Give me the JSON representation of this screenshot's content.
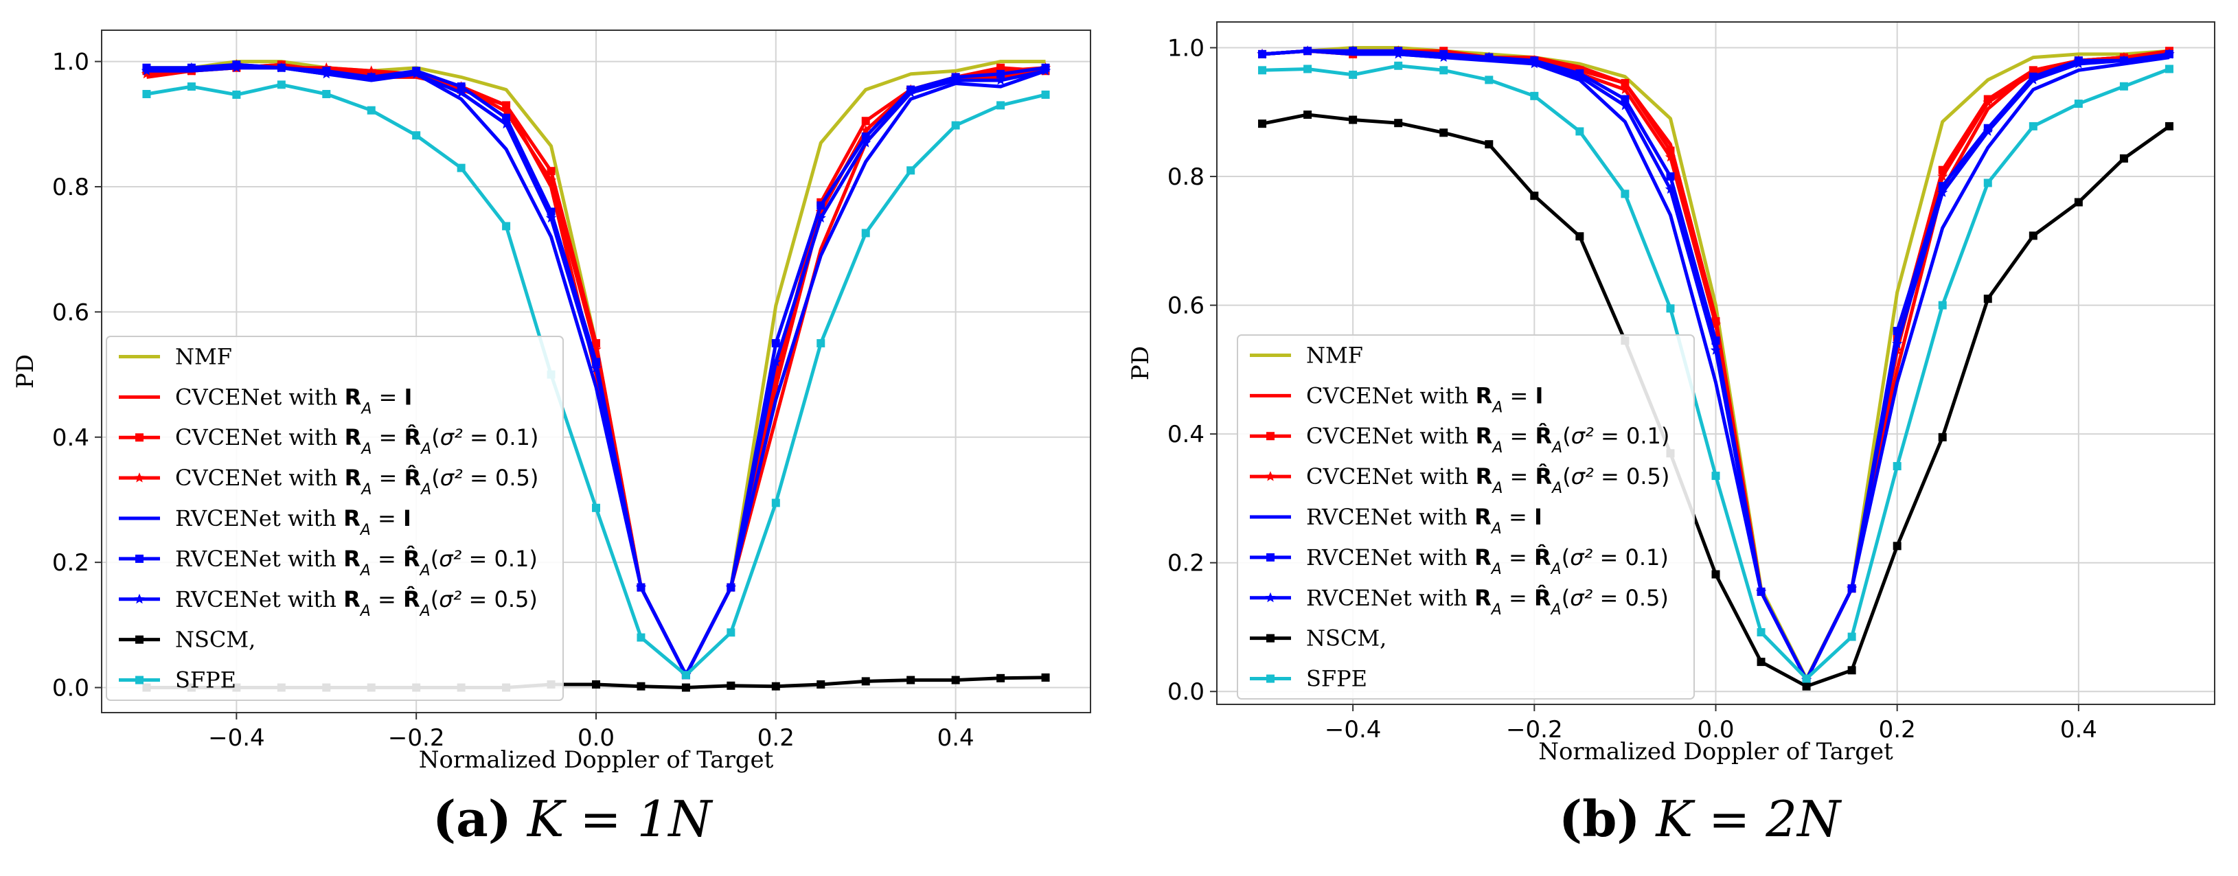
{
  "captions": [
    {
      "letter": "(a)",
      "math": "K = 1N"
    },
    {
      "letter": "(b)",
      "math": "K = 2N"
    }
  ],
  "chart_data": [
    {
      "type": "line",
      "xlabel": "Normalized Doppler of Target",
      "ylabel": "PD",
      "xlim": [
        -0.55,
        0.55
      ],
      "ylim": [
        -0.04,
        1.05
      ],
      "xticks": [
        "−0.4",
        "−0.2",
        "0.0",
        "0.2",
        "0.4"
      ],
      "xtick_values": [
        -0.4,
        -0.2,
        0.0,
        0.2,
        0.4
      ],
      "yticks": [
        "0.0",
        "0.2",
        "0.4",
        "0.6",
        "0.8",
        "1.0"
      ],
      "ytick_values": [
        0.0,
        0.2,
        0.4,
        0.6,
        0.8,
        1.0
      ],
      "grid": true,
      "legend_position": "lower-left",
      "x": [
        -0.5,
        -0.45,
        -0.4,
        -0.35,
        -0.3,
        -0.25,
        -0.2,
        -0.15,
        -0.1,
        -0.05,
        0.0,
        0.05,
        0.1,
        0.15,
        0.2,
        0.25,
        0.3,
        0.35,
        0.4,
        0.45,
        0.5
      ],
      "series": [
        {
          "name": "NMF",
          "color": "#bcbd22",
          "marker": "none",
          "values": [
            0.99,
            0.99,
            1.0,
            1.0,
            0.99,
            0.985,
            0.99,
            0.975,
            0.955,
            0.865,
            0.55,
            0.16,
            0.02,
            0.16,
            0.61,
            0.87,
            0.955,
            0.98,
            0.985,
            1.0,
            1.0
          ]
        },
        {
          "name": "CVCENet with R_A = I",
          "color": "#ff0000",
          "marker": "none",
          "values": [
            0.975,
            0.985,
            0.99,
            0.995,
            0.985,
            0.975,
            0.975,
            0.96,
            0.93,
            0.8,
            0.5,
            0.16,
            0.02,
            0.16,
            0.43,
            0.7,
            0.87,
            0.95,
            0.975,
            0.985,
            0.99
          ]
        },
        {
          "name": "CVCENet with R_A = R̂_A(σ² = 0.1)",
          "color": "#ff0000",
          "marker": "square",
          "values": [
            0.985,
            0.985,
            0.99,
            0.995,
            0.985,
            0.98,
            0.98,
            0.955,
            0.93,
            0.825,
            0.55,
            0.16,
            0.02,
            0.16,
            0.5,
            0.775,
            0.905,
            0.955,
            0.975,
            0.99,
            0.985
          ]
        },
        {
          "name": "CVCENet with R_A = R̂_A(σ² = 0.5)",
          "color": "#ff0000",
          "marker": "star",
          "values": [
            0.98,
            0.985,
            0.995,
            0.99,
            0.99,
            0.985,
            0.98,
            0.96,
            0.92,
            0.81,
            0.54,
            0.16,
            0.02,
            0.16,
            0.48,
            0.76,
            0.89,
            0.955,
            0.975,
            0.975,
            0.99
          ]
        },
        {
          "name": "RVCENet with R_A = I",
          "color": "#0000ff",
          "marker": "none",
          "values": [
            0.985,
            0.985,
            0.99,
            0.99,
            0.98,
            0.97,
            0.98,
            0.94,
            0.86,
            0.72,
            0.48,
            0.16,
            0.02,
            0.16,
            0.46,
            0.69,
            0.84,
            0.94,
            0.965,
            0.96,
            0.985
          ]
        },
        {
          "name": "RVCENet with R_A = R̂_A(σ² = 0.1)",
          "color": "#0000ff",
          "marker": "square",
          "values": [
            0.99,
            0.99,
            0.995,
            0.99,
            0.985,
            0.975,
            0.985,
            0.96,
            0.91,
            0.76,
            0.52,
            0.16,
            0.02,
            0.16,
            0.55,
            0.77,
            0.88,
            0.955,
            0.975,
            0.98,
            0.99
          ]
        },
        {
          "name": "RVCENet with R_A = R̂_A(σ² = 0.5)",
          "color": "#0000ff",
          "marker": "star",
          "values": [
            0.985,
            0.99,
            0.99,
            0.99,
            0.98,
            0.975,
            0.98,
            0.95,
            0.9,
            0.75,
            0.51,
            0.16,
            0.02,
            0.16,
            0.52,
            0.75,
            0.87,
            0.95,
            0.97,
            0.97,
            0.985
          ]
        },
        {
          "name": "NSCM,",
          "color": "#000000",
          "marker": "square",
          "values": [
            0.0,
            0.0,
            0.0,
            0.0,
            0.0,
            0.0,
            0.0,
            0.0,
            0.0,
            0.005,
            0.005,
            0.002,
            0.0,
            0.003,
            0.002,
            0.005,
            0.01,
            0.012,
            0.012,
            0.015,
            0.016
          ]
        },
        {
          "name": "SFPE",
          "color": "#17becf",
          "marker": "square",
          "values": [
            0.948,
            0.96,
            0.947,
            0.963,
            0.948,
            0.922,
            0.882,
            0.83,
            0.737,
            0.5,
            0.287,
            0.08,
            0.02,
            0.088,
            0.295,
            0.55,
            0.726,
            0.826,
            0.898,
            0.93,
            0.947
          ]
        }
      ]
    },
    {
      "type": "line",
      "xlabel": "Normalized Doppler of Target",
      "ylabel": "PD",
      "xlim": [
        -0.55,
        0.55
      ],
      "ylim": [
        -0.02,
        1.04
      ],
      "xticks": [
        "−0.4",
        "−0.2",
        "0.0",
        "0.2",
        "0.4"
      ],
      "xtick_values": [
        -0.4,
        -0.2,
        0.0,
        0.2,
        0.4
      ],
      "yticks": [
        "0.0",
        "0.2",
        "0.4",
        "0.6",
        "0.8",
        "1.0"
      ],
      "ytick_values": [
        0.0,
        0.2,
        0.4,
        0.6,
        0.8,
        1.0
      ],
      "grid": true,
      "legend_position": "lower-left",
      "x": [
        -0.5,
        -0.45,
        -0.4,
        -0.35,
        -0.3,
        -0.25,
        -0.2,
        -0.15,
        -0.1,
        -0.05,
        0.0,
        0.05,
        0.1,
        0.15,
        0.2,
        0.25,
        0.3,
        0.35,
        0.4,
        0.45,
        0.5
      ],
      "series": [
        {
          "name": "NMF",
          "color": "#bcbd22",
          "marker": "none",
          "values": [
            0.99,
            0.995,
            1.0,
            1.0,
            0.995,
            0.99,
            0.985,
            0.975,
            0.955,
            0.89,
            0.6,
            0.16,
            0.02,
            0.16,
            0.62,
            0.885,
            0.95,
            0.985,
            0.99,
            0.99,
            0.995
          ]
        },
        {
          "name": "CVCENet with R_A = I",
          "color": "#ff0000",
          "marker": "none",
          "values": [
            0.99,
            0.995,
            0.995,
            0.995,
            0.99,
            0.985,
            0.985,
            0.97,
            0.945,
            0.85,
            0.58,
            0.155,
            0.018,
            0.16,
            0.5,
            0.78,
            0.905,
            0.965,
            0.98,
            0.985,
            0.99
          ]
        },
        {
          "name": "CVCENet with R_A = R̂_A(σ² = 0.1)",
          "color": "#ff0000",
          "marker": "square",
          "values": [
            0.99,
            0.995,
            0.99,
            0.995,
            0.995,
            0.985,
            0.98,
            0.965,
            0.945,
            0.84,
            0.575,
            0.155,
            0.018,
            0.16,
            0.55,
            0.81,
            0.92,
            0.965,
            0.98,
            0.985,
            0.995
          ]
        },
        {
          "name": "CVCENet with R_A = R̂_A(σ² = 0.5)",
          "color": "#ff0000",
          "marker": "star",
          "values": [
            0.99,
            0.995,
            0.99,
            0.995,
            0.99,
            0.985,
            0.98,
            0.96,
            0.935,
            0.83,
            0.57,
            0.155,
            0.018,
            0.16,
            0.53,
            0.8,
            0.915,
            0.96,
            0.98,
            0.985,
            0.99
          ]
        },
        {
          "name": "RVCENet with R_A = I",
          "color": "#0000ff",
          "marker": "none",
          "values": [
            0.99,
            0.995,
            0.99,
            0.99,
            0.985,
            0.98,
            0.975,
            0.95,
            0.885,
            0.74,
            0.48,
            0.155,
            0.018,
            0.16,
            0.48,
            0.72,
            0.845,
            0.935,
            0.965,
            0.975,
            0.985
          ]
        },
        {
          "name": "RVCENet with R_A = R̂_A(σ² = 0.1)",
          "color": "#0000ff",
          "marker": "square",
          "values": [
            0.99,
            0.995,
            0.995,
            0.995,
            0.99,
            0.985,
            0.98,
            0.96,
            0.92,
            0.8,
            0.545,
            0.155,
            0.018,
            0.16,
            0.56,
            0.785,
            0.875,
            0.955,
            0.98,
            0.98,
            0.99
          ]
        },
        {
          "name": "RVCENet with R_A = R̂_A(σ² = 0.5)",
          "color": "#0000ff",
          "marker": "star",
          "values": [
            0.99,
            0.995,
            0.995,
            0.99,
            0.985,
            0.985,
            0.975,
            0.955,
            0.91,
            0.78,
            0.53,
            0.155,
            0.018,
            0.16,
            0.54,
            0.775,
            0.87,
            0.95,
            0.975,
            0.98,
            0.99
          ]
        },
        {
          "name": "NSCM,",
          "color": "#000000",
          "marker": "square",
          "values": [
            0.882,
            0.896,
            0.888,
            0.883,
            0.868,
            0.85,
            0.77,
            0.707,
            0.545,
            0.37,
            0.182,
            0.046,
            0.008,
            0.033,
            0.226,
            0.395,
            0.61,
            0.708,
            0.76,
            0.828,
            0.878
          ]
        },
        {
          "name": "SFPE",
          "color": "#17becf",
          "marker": "square",
          "values": [
            0.965,
            0.967,
            0.958,
            0.972,
            0.965,
            0.95,
            0.925,
            0.87,
            0.773,
            0.595,
            0.335,
            0.092,
            0.02,
            0.085,
            0.35,
            0.6,
            0.79,
            0.878,
            0.913,
            0.94,
            0.967
          ]
        }
      ]
    }
  ]
}
